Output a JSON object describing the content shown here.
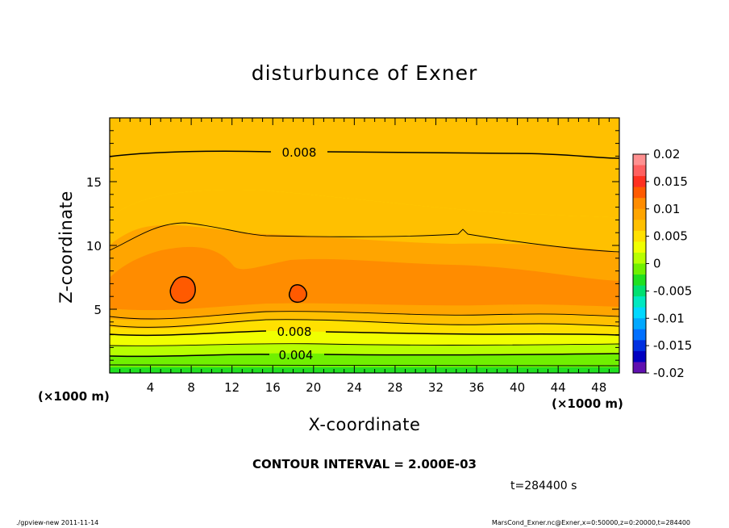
{
  "chart_data": {
    "type": "contour",
    "title": "disturbunce of Exner",
    "xlabel": "X-coordinate",
    "ylabel": "Z-coordinate",
    "x_unit_label": "(×1000 m)",
    "y_unit_label": "(×1000 m)",
    "xlim": [
      0,
      50
    ],
    "ylim": [
      0,
      20
    ],
    "x_ticks": [
      "4",
      "8",
      "12",
      "16",
      "20",
      "24",
      "28",
      "32",
      "36",
      "40",
      "44",
      "48"
    ],
    "y_ticks": [
      "5",
      "10",
      "15"
    ],
    "contour_interval_text": "CONTOUR INTERVAL = 2.000E-03",
    "contour_labels": [
      "0.008",
      "0.008",
      "0.004"
    ],
    "colorbar": {
      "labels": [
        "0.02",
        "0.015",
        "0.01",
        "0.005",
        "0",
        "-0.005",
        "-0.01",
        "-0.015",
        "-0.02"
      ],
      "colors": [
        "#FF9090",
        "#FF6060",
        "#FF3020",
        "#FF5A00",
        "#FF8C00",
        "#FFA500",
        "#FFC000",
        "#FFE000",
        "#F0FF00",
        "#B8FF00",
        "#70F000",
        "#20E020",
        "#00E070",
        "#00E8C0",
        "#00D8FF",
        "#00A8FF",
        "#0070FF",
        "#0030E0",
        "#0000C0",
        "#6010B0"
      ]
    },
    "time_text": "t=284400 s"
  },
  "footer": {
    "left": "./gpview-new   2011-11-14",
    "right": "MarsCond_Exner.nc@Exner,x=0:50000,z=0:20000,t=284400"
  }
}
